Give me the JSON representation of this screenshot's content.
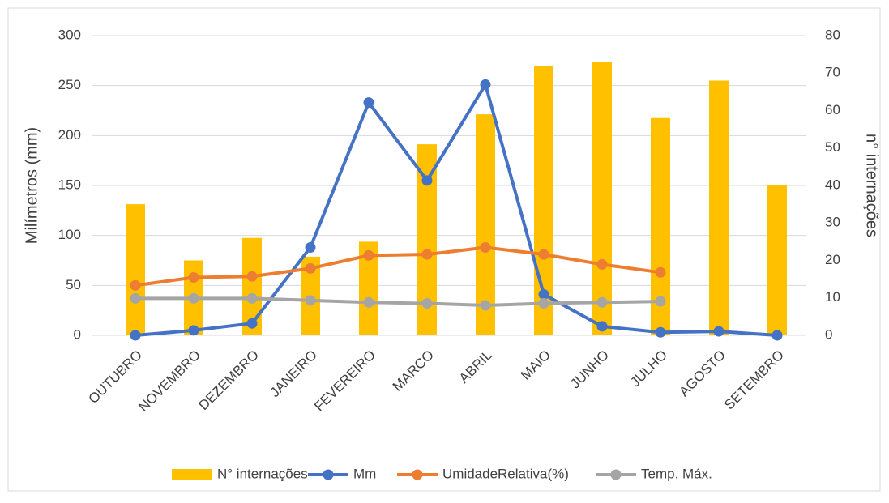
{
  "chart_data": {
    "type": "combo",
    "y_label": "Milímetros (mm)",
    "y2_label": "n° internações",
    "categories": [
      "OUTUBRO",
      "NOVEMBRO",
      "DEZEMBRO",
      "JANEIRO",
      "FEVEREIRO",
      "MARCO",
      "ABRIL",
      "MAIO",
      "JUNHO",
      "JULHO",
      "AGOSTO",
      "SETEMBRO"
    ],
    "ylim": [
      0,
      300
    ],
    "yticks": [
      0,
      50,
      100,
      150,
      200,
      250,
      300
    ],
    "y2lim": [
      0,
      80
    ],
    "y2ticks": [
      0,
      10,
      20,
      30,
      40,
      50,
      60,
      70,
      80
    ],
    "grid": true,
    "legend": "bottom",
    "series": [
      {
        "name": "N° internações",
        "type": "bar",
        "axis": "y2",
        "color": "#ffc000",
        "values": [
          35,
          20,
          26,
          21,
          25,
          51,
          59,
          72,
          73,
          58,
          68,
          40
        ]
      },
      {
        "name": "Mm",
        "type": "line",
        "color": "#4472c4",
        "values": [
          0,
          5,
          12,
          88,
          233,
          155,
          251,
          41,
          9,
          3,
          4,
          0
        ]
      },
      {
        "name": "UmidadeRelativa(%)",
        "type": "line",
        "color": "#ed7d31",
        "values": [
          50,
          58,
          59,
          67,
          80,
          81,
          88,
          81,
          71,
          63,
          null,
          null
        ]
      },
      {
        "name": "Temp. Máx.",
        "type": "line",
        "color": "#a5a5a5",
        "values": [
          37,
          37,
          37,
          35,
          33,
          32,
          30,
          32,
          33,
          34,
          null,
          null
        ]
      }
    ]
  }
}
